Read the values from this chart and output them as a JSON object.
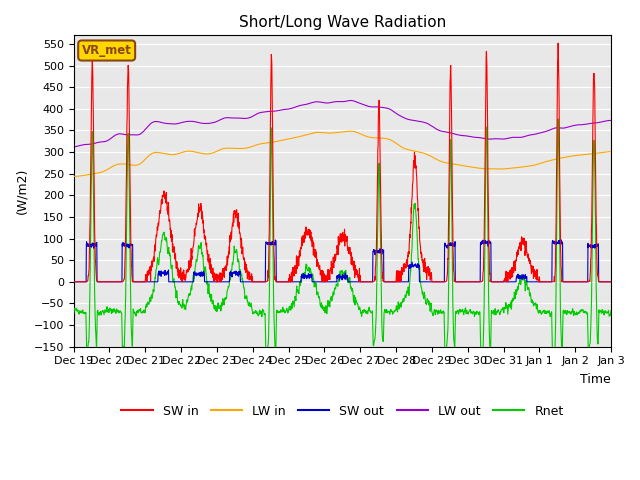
{
  "title": "Short/Long Wave Radiation",
  "ylabel": "(W/m2)",
  "xlabel": "Time",
  "ylim": [
    -150,
    570
  ],
  "yticks": [
    -150,
    -100,
    -50,
    0,
    50,
    100,
    150,
    200,
    250,
    300,
    350,
    400,
    450,
    500,
    550
  ],
  "annotation": "VR_met",
  "annotation_color": "#8B4513",
  "annotation_bg": "#FFD700",
  "bg_color": "#E8E8E8",
  "line_colors": {
    "SW_in": "#FF0000",
    "LW_in": "#FFA500",
    "SW_out": "#0000CC",
    "LW_out": "#9900CC",
    "Rnet": "#00CC00"
  },
  "legend_labels": [
    "SW in",
    "LW in",
    "SW out",
    "LW out",
    "Rnet"
  ],
  "x_tick_labels": [
    "Dec 19",
    "Dec 20",
    "Dec 21",
    "Dec 22",
    "Dec 23",
    "Dec 24",
    "Dec 25",
    "Dec 26",
    "Dec 27",
    "Dec 28",
    "Dec 29",
    "Dec 30",
    "Dec 31",
    "Jan 1",
    "Jan 2",
    "Jan 3"
  ],
  "n_days": 15,
  "pts_per_day": 144
}
